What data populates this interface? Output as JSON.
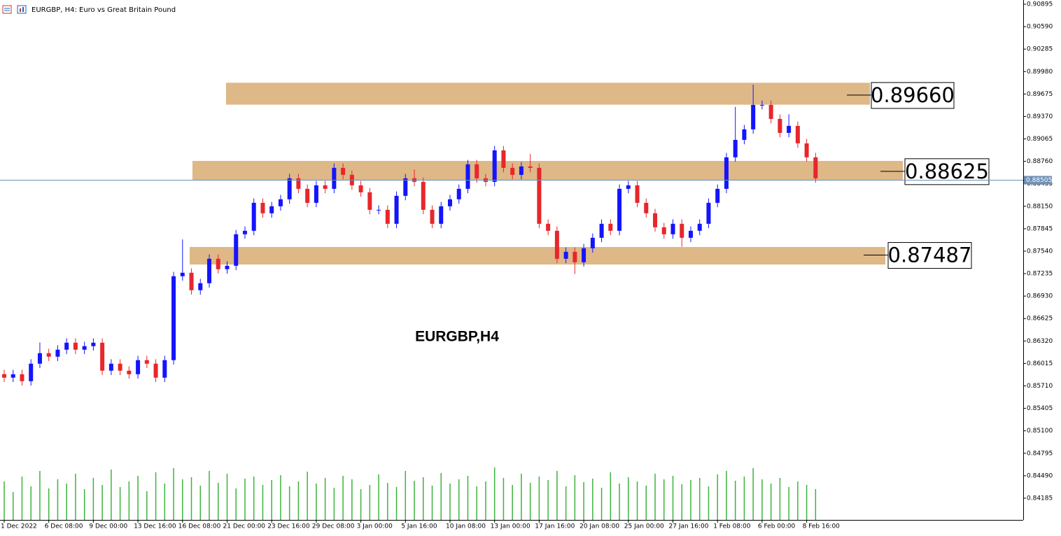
{
  "chart_data": {
    "type": "candlestick",
    "title": "EURGBP, H4:  Euro vs Great Britain Pound",
    "watermark": "EURGBP,H4",
    "up_color": "#1414ff",
    "down_color": "#e8262b",
    "volume_color": "#3cb43c",
    "zone_color": "#deb887",
    "categories": [
      "1 Dec 2022",
      null,
      null,
      null,
      null,
      "6 Dec 08:00",
      null,
      null,
      null,
      null,
      "9 Dec 00:00",
      null,
      null,
      null,
      null,
      "13 Dec 16:00",
      null,
      null,
      null,
      null,
      "16 Dec 08:00",
      null,
      null,
      null,
      null,
      "21 Dec 00:00",
      null,
      null,
      null,
      null,
      "23 Dec 16:00",
      null,
      null,
      null,
      null,
      "29 Dec 08:00",
      null,
      null,
      null,
      null,
      "3 Jan 00:00",
      null,
      null,
      null,
      null,
      "5 Jan 16:00",
      null,
      null,
      null,
      null,
      "10 Jan 08:00",
      null,
      null,
      null,
      null,
      "13 Jan 00:00",
      null,
      null,
      null,
      null,
      "17 Jan 16:00",
      null,
      null,
      null,
      null,
      "20 Jan 08:00",
      null,
      null,
      null,
      null,
      "25 Jan 00:00",
      null,
      null,
      null,
      null,
      "27 Jan 16:00",
      null,
      null,
      null,
      null,
      "1 Feb 08:00",
      null,
      null,
      null,
      null,
      "6 Feb 00:00",
      null,
      null,
      null,
      null,
      "8 Feb 16:00",
      null
    ],
    "open": [
      0.8587,
      0.85822,
      0.85869,
      0.85774,
      0.86012,
      0.86155,
      0.86107,
      0.86202,
      0.86297,
      0.86202,
      0.8625,
      0.86297,
      0.85917,
      0.86012,
      0.85917,
      0.85869,
      0.8606,
      0.86012,
      0.85822,
      0.8606,
      0.872,
      0.87247,
      0.8701,
      0.87105,
      0.87437,
      0.87295,
      0.87342,
      0.8777,
      0.87817,
      0.88197,
      0.88055,
      0.8815,
      0.88245,
      0.8853,
      0.88387,
      0.88197,
      0.88435,
      0.88387,
      0.88672,
      0.88577,
      0.88435,
      0.8834,
      0.88102,
      0.88102,
      0.87912,
      0.88292,
      0.8853,
      0.88482,
      0.88102,
      0.87912,
      0.8815,
      0.88245,
      0.88387,
      0.8872,
      0.8853,
      0.88482,
      0.8891,
      0.88672,
      0.88577,
      0.88691,
      0.88672,
      0.87912,
      0.87817,
      0.87437,
      0.87532,
      0.8739,
      0.8758,
      0.87722,
      0.87912,
      0.87817,
      0.88387,
      0.88435,
      0.88197,
      0.88055,
      0.87865,
      0.8777,
      0.87912,
      0.87722,
      0.87817,
      0.87912,
      0.88197,
      0.88387,
      0.88815,
      0.89052,
      0.89195,
      0.89527,
      0.89527,
      0.89337,
      0.89147,
      0.89242,
      0.89005,
      0.88815
    ],
    "high": [
      0.8593,
      0.85929,
      0.85929,
      0.86072,
      0.863,
      0.86215,
      0.86262,
      0.86357,
      0.86357,
      0.8631,
      0.86357,
      0.86357,
      0.86072,
      0.86072,
      0.85977,
      0.8612,
      0.8612,
      0.86072,
      0.8612,
      0.8726,
      0.877,
      0.87307,
      0.87165,
      0.87497,
      0.87497,
      0.87402,
      0.8783,
      0.87877,
      0.88257,
      0.88257,
      0.8821,
      0.88305,
      0.8859,
      0.8859,
      0.88447,
      0.88495,
      0.88495,
      0.88732,
      0.88732,
      0.88637,
      0.88495,
      0.884,
      0.88162,
      0.88162,
      0.88352,
      0.8859,
      0.8865,
      0.88542,
      0.88162,
      0.8821,
      0.88305,
      0.88447,
      0.8878,
      0.8878,
      0.8859,
      0.8897,
      0.8897,
      0.88732,
      0.88751,
      0.8886,
      0.88732,
      0.87972,
      0.87877,
      0.87592,
      0.87592,
      0.8764,
      0.87782,
      0.87972,
      0.87972,
      0.88447,
      0.88495,
      0.88495,
      0.88257,
      0.88115,
      0.87925,
      0.87972,
      0.87972,
      0.87877,
      0.87972,
      0.88257,
      0.88447,
      0.88875,
      0.895,
      0.89255,
      0.89802,
      0.89587,
      0.89587,
      0.89397,
      0.894,
      0.89302,
      0.89065,
      0.88875
    ],
    "low": [
      0.85762,
      0.85762,
      0.85714,
      0.85714,
      0.85952,
      0.86047,
      0.86047,
      0.86142,
      0.86142,
      0.86142,
      0.8619,
      0.85857,
      0.85857,
      0.85857,
      0.85809,
      0.85809,
      0.85952,
      0.85762,
      0.85762,
      0.86,
      0.8714,
      0.8695,
      0.8695,
      0.87045,
      0.87235,
      0.87235,
      0.87282,
      0.8771,
      0.87757,
      0.87995,
      0.87995,
      0.8809,
      0.88185,
      0.88327,
      0.88137,
      0.88137,
      0.88327,
      0.88327,
      0.88517,
      0.88375,
      0.8828,
      0.88042,
      0.88042,
      0.87852,
      0.87852,
      0.88232,
      0.88422,
      0.88042,
      0.87852,
      0.87852,
      0.8809,
      0.88185,
      0.88327,
      0.8847,
      0.88422,
      0.88422,
      0.88612,
      0.88517,
      0.88517,
      0.88612,
      0.87852,
      0.87757,
      0.87377,
      0.87377,
      0.8723,
      0.8733,
      0.8752,
      0.87662,
      0.87757,
      0.87757,
      0.88327,
      0.88137,
      0.87995,
      0.87805,
      0.8771,
      0.8771,
      0.876,
      0.87662,
      0.87757,
      0.87852,
      0.88137,
      0.88327,
      0.88755,
      0.88992,
      0.89135,
      0.89467,
      0.89277,
      0.89087,
      0.89087,
      0.88945,
      0.88755,
      0.8847
    ],
    "close": [
      0.85822,
      0.85869,
      0.85774,
      0.86012,
      0.86155,
      0.86107,
      0.86202,
      0.86297,
      0.86202,
      0.8625,
      0.86297,
      0.85917,
      0.86012,
      0.85917,
      0.85869,
      0.8606,
      0.86012,
      0.85822,
      0.8606,
      0.872,
      0.87247,
      0.8701,
      0.87105,
      0.87437,
      0.87295,
      0.87342,
      0.8777,
      0.87817,
      0.88197,
      0.88055,
      0.8815,
      0.88245,
      0.8853,
      0.88387,
      0.88197,
      0.88435,
      0.88387,
      0.88672,
      0.88577,
      0.88435,
      0.8834,
      0.88102,
      0.88102,
      0.87912,
      0.88292,
      0.8853,
      0.88482,
      0.88102,
      0.87912,
      0.8815,
      0.88245,
      0.88387,
      0.8872,
      0.8853,
      0.88482,
      0.8891,
      0.88672,
      0.88577,
      0.88691,
      0.88672,
      0.87912,
      0.87817,
      0.87437,
      0.87532,
      0.8739,
      0.8758,
      0.87722,
      0.87912,
      0.87817,
      0.88387,
      0.88435,
      0.88197,
      0.88055,
      0.87865,
      0.8777,
      0.87912,
      0.87722,
      0.87817,
      0.87912,
      0.88197,
      0.88387,
      0.88815,
      0.89052,
      0.89195,
      0.89527,
      0.89527,
      0.89337,
      0.89147,
      0.89242,
      0.89005,
      0.88815,
      0.8853
    ],
    "volume": [
      55,
      40,
      62,
      48,
      70,
      45,
      58,
      52,
      66,
      44,
      60,
      50,
      72,
      47,
      55,
      63,
      41,
      68,
      52,
      74,
      58,
      61,
      49,
      70,
      53,
      66,
      45,
      59,
      62,
      50,
      57,
      64,
      48,
      55,
      69,
      52,
      60,
      46,
      63,
      58,
      44,
      50,
      65,
      53,
      47,
      70,
      56,
      61,
      49,
      67,
      52,
      58,
      63,
      48,
      55,
      75,
      60,
      50,
      66,
      53,
      62,
      57,
      70,
      48,
      64,
      54,
      59,
      46,
      68,
      52,
      61,
      55,
      49,
      66,
      58,
      63,
      51,
      57,
      60,
      48,
      65,
      70,
      56,
      62,
      74,
      58,
      52,
      60,
      47,
      55,
      50,
      44
    ],
    "ylim": [
      0.8389,
      0.90952
    ],
    "yticks": [
      {
        "value": 0.90895,
        "label": "0.90895"
      },
      {
        "value": 0.9059,
        "label": "0.90590"
      },
      {
        "value": 0.90285,
        "label": "0.90285"
      },
      {
        "value": 0.8998,
        "label": "0.89980"
      },
      {
        "value": 0.89675,
        "label": "0.89675"
      },
      {
        "value": 0.8937,
        "label": "0.89370"
      },
      {
        "value": 0.89065,
        "label": "0.89065"
      },
      {
        "value": 0.8876,
        "label": "0.88760"
      },
      {
        "value": 0.88455,
        "label": "0.88455"
      },
      {
        "value": 0.8815,
        "label": "0.88150"
      },
      {
        "value": 0.87845,
        "label": "0.87845"
      },
      {
        "value": 0.8754,
        "label": "0.87540"
      },
      {
        "value": 0.87235,
        "label": "0.87235"
      },
      {
        "value": 0.8693,
        "label": "0.86930"
      },
      {
        "value": 0.86625,
        "label": "0.86625"
      },
      {
        "value": 0.8632,
        "label": "0.86320"
      },
      {
        "value": 0.86015,
        "label": "0.86015"
      },
      {
        "value": 0.8571,
        "label": "0.85710"
      },
      {
        "value": 0.85405,
        "label": "0.85405"
      },
      {
        "value": 0.851,
        "label": "0.85100"
      },
      {
        "value": 0.84795,
        "label": "0.84795"
      },
      {
        "value": 0.8449,
        "label": "0.84490"
      },
      {
        "value": 0.84185,
        "label": "0.84185"
      }
    ],
    "current_price": {
      "value": 0.88505,
      "label": "0.88505"
    },
    "zones": [
      {
        "low": 0.8953,
        "high": 0.89828,
        "label": {
          "value": 0.8966,
          "label": "0.89660"
        }
      },
      {
        "low": 0.885,
        "high": 0.88766,
        "label": {
          "value": 0.88625,
          "label": "0.88625"
        }
      },
      {
        "low": 0.87359,
        "high": 0.87597,
        "label": {
          "value": 0.87487,
          "label": "0.87487"
        }
      }
    ]
  }
}
